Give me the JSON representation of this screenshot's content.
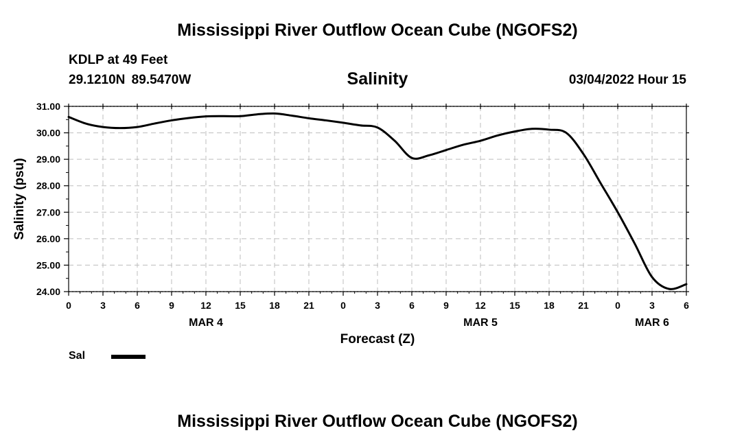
{
  "header": {
    "title": "Mississippi River Outflow Ocean Cube (NGOFS2)",
    "station": "KDLP at 49 Feet",
    "coordinates": "29.1210N  89.5470W",
    "parameter": "Salinity",
    "datetime": "03/04/2022 Hour 15"
  },
  "footer": {
    "title": "Mississippi River Outflow Ocean Cube (NGOFS2)"
  },
  "legend": {
    "label": "Sal",
    "color": "#000000"
  },
  "chart_data": {
    "type": "line",
    "title": "Salinity",
    "xlabel": "Forecast (Z)",
    "ylabel": "Salinity (psu)",
    "grid": true,
    "xlim": [
      0,
      54
    ],
    "ylim": [
      24,
      31
    ],
    "x_unit": "hours from 00Z MAR 4",
    "y_ticks": [
      "31.00",
      "30.00",
      "29.00",
      "28.00",
      "27.00",
      "26.00",
      "25.00",
      "24.00"
    ],
    "x_ticks": [
      {
        "hour": 0,
        "label": "0"
      },
      {
        "hour": 3,
        "label": "3"
      },
      {
        "hour": 6,
        "label": "6"
      },
      {
        "hour": 9,
        "label": "9"
      },
      {
        "hour": 12,
        "label": "12"
      },
      {
        "hour": 15,
        "label": "15"
      },
      {
        "hour": 18,
        "label": "18"
      },
      {
        "hour": 21,
        "label": "21"
      },
      {
        "hour": 24,
        "label": "0"
      },
      {
        "hour": 27,
        "label": "3"
      },
      {
        "hour": 30,
        "label": "6"
      },
      {
        "hour": 33,
        "label": "9"
      },
      {
        "hour": 36,
        "label": "12"
      },
      {
        "hour": 39,
        "label": "15"
      },
      {
        "hour": 42,
        "label": "18"
      },
      {
        "hour": 45,
        "label": "21"
      },
      {
        "hour": 48,
        "label": "0"
      },
      {
        "hour": 51,
        "label": "3"
      },
      {
        "hour": 54,
        "label": "6"
      }
    ],
    "date_labels": [
      {
        "hour": 12,
        "label": "MAR 4"
      },
      {
        "hour": 36,
        "label": "MAR 5"
      },
      {
        "hour": 51,
        "label": "MAR 6"
      }
    ],
    "series": [
      {
        "name": "Sal",
        "x": [
          0,
          1.5,
          3,
          4.5,
          6,
          7.5,
          9,
          10.5,
          12,
          13.5,
          15,
          16.5,
          18,
          19.5,
          21,
          22.5,
          24,
          25.5,
          27,
          28.5,
          30,
          31.5,
          33,
          34.5,
          36,
          37.5,
          39,
          40.5,
          42,
          43.5,
          45,
          46.5,
          48,
          49.5,
          51,
          52.5,
          54
        ],
        "y": [
          30.6,
          30.35,
          30.22,
          30.18,
          30.22,
          30.35,
          30.47,
          30.56,
          30.62,
          30.63,
          30.63,
          30.7,
          30.73,
          30.65,
          30.55,
          30.47,
          30.38,
          30.28,
          30.2,
          29.7,
          29.05,
          29.15,
          29.35,
          29.55,
          29.7,
          29.9,
          30.05,
          30.15,
          30.12,
          30.0,
          29.2,
          28.1,
          27.0,
          25.8,
          24.55,
          24.1,
          24.28
        ]
      }
    ]
  }
}
